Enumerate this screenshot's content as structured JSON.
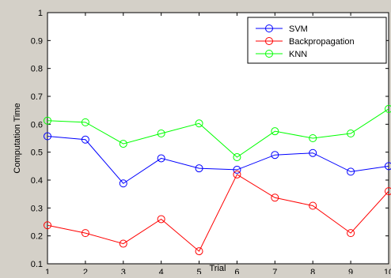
{
  "chart_data": {
    "type": "line",
    "title": "",
    "xlabel": "Trial",
    "ylabel": "Computation Time",
    "xlim": [
      1,
      10
    ],
    "ylim": [
      0.1,
      1
    ],
    "x": [
      1,
      2,
      3,
      4,
      5,
      6,
      7,
      8,
      9,
      10
    ],
    "x_ticks": [
      "1",
      "2",
      "3",
      "4",
      "5",
      "6",
      "7",
      "8",
      "9",
      "10"
    ],
    "y_ticks": [
      "0.1",
      "0.2",
      "0.3",
      "0.4",
      "0.5",
      "0.6",
      "0.7",
      "0.8",
      "0.9",
      "1"
    ],
    "grid": false,
    "legend_position": "top-right",
    "marker": "circle",
    "series": [
      {
        "name": "SVM",
        "color": "#0000ff",
        "values": [
          0.557,
          0.545,
          0.388,
          0.478,
          0.442,
          0.437,
          0.49,
          0.497,
          0.43,
          0.45
        ]
      },
      {
        "name": "Backpropagation",
        "color": "#ff0000",
        "values": [
          0.238,
          0.21,
          0.172,
          0.26,
          0.145,
          0.42,
          0.337,
          0.308,
          0.21,
          0.36
        ]
      },
      {
        "name": "KNN",
        "color": "#00ff00",
        "values": [
          0.613,
          0.607,
          0.53,
          0.567,
          0.603,
          0.482,
          0.575,
          0.55,
          0.567,
          0.655
        ]
      }
    ]
  }
}
